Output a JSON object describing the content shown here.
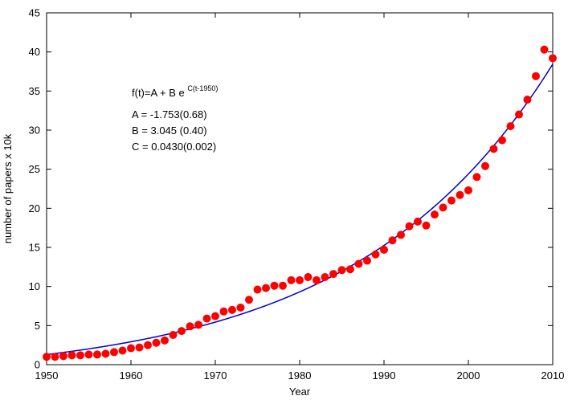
{
  "chart_data": {
    "type": "scatter",
    "xlabel": "Year",
    "ylabel": "number of papers x 10k",
    "xlim": [
      1950,
      2010
    ],
    "ylim": [
      0,
      45
    ],
    "xticks": [
      1950,
      1960,
      1970,
      1980,
      1990,
      2000,
      2010
    ],
    "yticks": [
      0,
      5,
      10,
      15,
      20,
      25,
      30,
      35,
      40,
      45
    ],
    "grid": false,
    "series": [
      {
        "kind": "points",
        "color": "#ff0000",
        "x": [
          1950,
          1951,
          1952,
          1953,
          1954,
          1955,
          1956,
          1957,
          1958,
          1959,
          1960,
          1961,
          1962,
          1963,
          1964,
          1965,
          1966,
          1967,
          1968,
          1969,
          1970,
          1971,
          1972,
          1973,
          1974,
          1975,
          1976,
          1977,
          1978,
          1979,
          1980,
          1981,
          1982,
          1983,
          1984,
          1985,
          1986,
          1987,
          1988,
          1989,
          1990,
          1991,
          1992,
          1993,
          1994,
          1995,
          1996,
          1997,
          1998,
          1999,
          2000,
          2001,
          2002,
          2003,
          2004,
          2005,
          2006,
          2007,
          2008,
          2009,
          2010
        ],
        "y": [
          1.0,
          1.0,
          1.1,
          1.2,
          1.2,
          1.3,
          1.3,
          1.4,
          1.6,
          1.8,
          2.1,
          2.2,
          2.5,
          2.8,
          3.1,
          3.8,
          4.3,
          4.9,
          5.1,
          5.9,
          6.2,
          6.8,
          7.0,
          7.3,
          8.3,
          9.6,
          9.8,
          10.1,
          10.1,
          10.8,
          10.8,
          11.2,
          10.8,
          11.2,
          11.6,
          12.1,
          12.2,
          12.9,
          13.3,
          14.1,
          14.7,
          15.9,
          16.6,
          17.7,
          18.3,
          17.8,
          19.2,
          20.1,
          21.0,
          21.7,
          22.3,
          24.0,
          25.4,
          27.6,
          28.7,
          30.5,
          32.0,
          33.9,
          36.9,
          40.3,
          39.2
        ]
      },
      {
        "kind": "fit",
        "color": "#0000cc",
        "model": {
          "A": -1.753,
          "B": 3.045,
          "C": 0.043,
          "t0": 1950
        }
      }
    ],
    "annotations": {
      "formula_main": "f(t)=A + B e",
      "formula_exp": "C(t-1950)",
      "lines": [
        "A = -1.753(0.68)",
        "B = 3.045 (0.40)",
        "C = 0.0430(0.002)"
      ]
    }
  }
}
